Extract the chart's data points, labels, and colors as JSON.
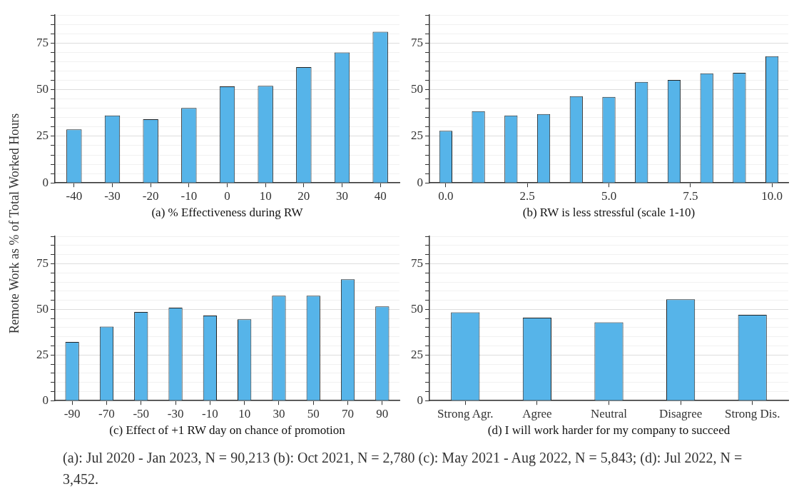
{
  "chart_data": [
    {
      "type": "bar",
      "xlabel": "(a) % Effectiveness during RW",
      "ylabel": "Remote Work as % of Total Worked Hours",
      "categories": [
        "-40",
        "-30",
        "-20",
        "-10",
        "0",
        "10",
        "20",
        "30",
        "40"
      ],
      "values": [
        28.7,
        36.2,
        34.2,
        40.2,
        51.8,
        52.1,
        62.1,
        70.0,
        81.1
      ],
      "color": "#56b4e9",
      "ylim": [
        0,
        90
      ],
      "yticks": [
        0,
        {
          "value": 5,
          "label": null
        },
        {
          "value": 10,
          "label": null
        },
        {
          "value": 15,
          "label": null
        },
        {
          "value": 20,
          "label": null
        },
        25,
        {
          "value": 30,
          "label": null
        },
        {
          "value": 35,
          "label": null
        },
        {
          "value": 40,
          "label": null
        },
        {
          "value": 45,
          "label": null
        },
        50,
        {
          "value": 55,
          "label": null
        },
        {
          "value": 60,
          "label": null
        },
        {
          "value": 65,
          "label": null
        },
        {
          "value": 70,
          "label": null
        },
        75,
        {
          "value": 80,
          "label": null
        },
        {
          "value": 85,
          "label": null
        },
        {
          "value": 90,
          "label": null
        }
      ],
      "grid": "y"
    },
    {
      "type": "bar",
      "xlabel": "(b) RW is less stressful (scale 1-10)",
      "x": [
        0,
        1,
        2,
        3,
        4,
        5,
        6,
        7,
        8,
        9,
        10
      ],
      "values": [
        27.9,
        38.5,
        36.2,
        36.9,
        46.5,
        46.1,
        54.2,
        55.2,
        58.8,
        59.1,
        68.0
      ],
      "color": "#56b4e9",
      "xlim": [
        -0.5,
        10.5
      ],
      "xticks": [
        {
          "value": 0,
          "label": "0.0"
        },
        2.5,
        {
          "value": 5,
          "label": "5.0"
        },
        7.5,
        {
          "value": 10,
          "label": "10.0"
        }
      ],
      "ylim": [
        0,
        90
      ],
      "yticks": [
        0,
        {
          "value": 5,
          "label": null
        },
        {
          "value": 10,
          "label": null
        },
        {
          "value": 15,
          "label": null
        },
        {
          "value": 20,
          "label": null
        },
        25,
        {
          "value": 30,
          "label": null
        },
        {
          "value": 35,
          "label": null
        },
        {
          "value": 40,
          "label": null
        },
        {
          "value": 45,
          "label": null
        },
        50,
        {
          "value": 55,
          "label": null
        },
        {
          "value": 60,
          "label": null
        },
        {
          "value": 65,
          "label": null
        },
        {
          "value": 70,
          "label": null
        },
        75,
        {
          "value": 80,
          "label": null
        },
        {
          "value": 85,
          "label": null
        },
        {
          "value": 90,
          "label": null
        }
      ],
      "grid": "y"
    },
    {
      "type": "bar",
      "xlabel": "(c) Effect of +1 RW day on chance of promotion",
      "categories": [
        "-90",
        "-70",
        "-50",
        "-30",
        "-10",
        "10",
        "30",
        "50",
        "70",
        "90"
      ],
      "values": [
        32.2,
        40.6,
        48.6,
        50.9,
        46.6,
        44.6,
        57.5,
        57.5,
        66.5,
        51.6
      ],
      "color": "#56b4e9",
      "ylim": [
        0,
        90
      ],
      "yticks": [
        0,
        {
          "value": 5,
          "label": null
        },
        {
          "value": 10,
          "label": null
        },
        {
          "value": 15,
          "label": null
        },
        {
          "value": 20,
          "label": null
        },
        25,
        {
          "value": 30,
          "label": null
        },
        {
          "value": 35,
          "label": null
        },
        {
          "value": 40,
          "label": null
        },
        {
          "value": 45,
          "label": null
        },
        50,
        {
          "value": 55,
          "label": null
        },
        {
          "value": 60,
          "label": null
        },
        {
          "value": 65,
          "label": null
        },
        {
          "value": 70,
          "label": null
        },
        75,
        {
          "value": 80,
          "label": null
        },
        {
          "value": 85,
          "label": null
        },
        {
          "value": 90,
          "label": null
        }
      ],
      "grid": "y"
    },
    {
      "type": "bar",
      "xlabel": "(d) I will work harder for my company to succeed",
      "categories": [
        "Strong Agr.",
        "Agree",
        "Neutral",
        "Disagree",
        "Strong Dis."
      ],
      "values": [
        48.4,
        45.5,
        42.9,
        55.5,
        47.0
      ],
      "color": "#56b4e9",
      "ylim": [
        0,
        90
      ],
      "yticks": [
        0,
        {
          "value": 5,
          "label": null
        },
        {
          "value": 10,
          "label": null
        },
        {
          "value": 15,
          "label": null
        },
        {
          "value": 20,
          "label": null
        },
        25,
        {
          "value": 30,
          "label": null
        },
        {
          "value": 35,
          "label": null
        },
        {
          "value": 40,
          "label": null
        },
        {
          "value": 45,
          "label": null
        },
        50,
        {
          "value": 55,
          "label": null
        },
        {
          "value": 60,
          "label": null
        },
        {
          "value": 65,
          "label": null
        },
        {
          "value": 70,
          "label": null
        },
        75,
        {
          "value": 80,
          "label": null
        },
        {
          "value": 85,
          "label": null
        },
        {
          "value": 90,
          "label": null
        }
      ],
      "grid": "y",
      "annotations": [
        "(a): Jul 2020 - Jan 2023, N = 90,213 (b): Oct 2021, N = 2,780 (c): May 2021 - Aug 2022, N = 5,843; (d): Jul 2022, N = 3,452."
      ]
    }
  ]
}
